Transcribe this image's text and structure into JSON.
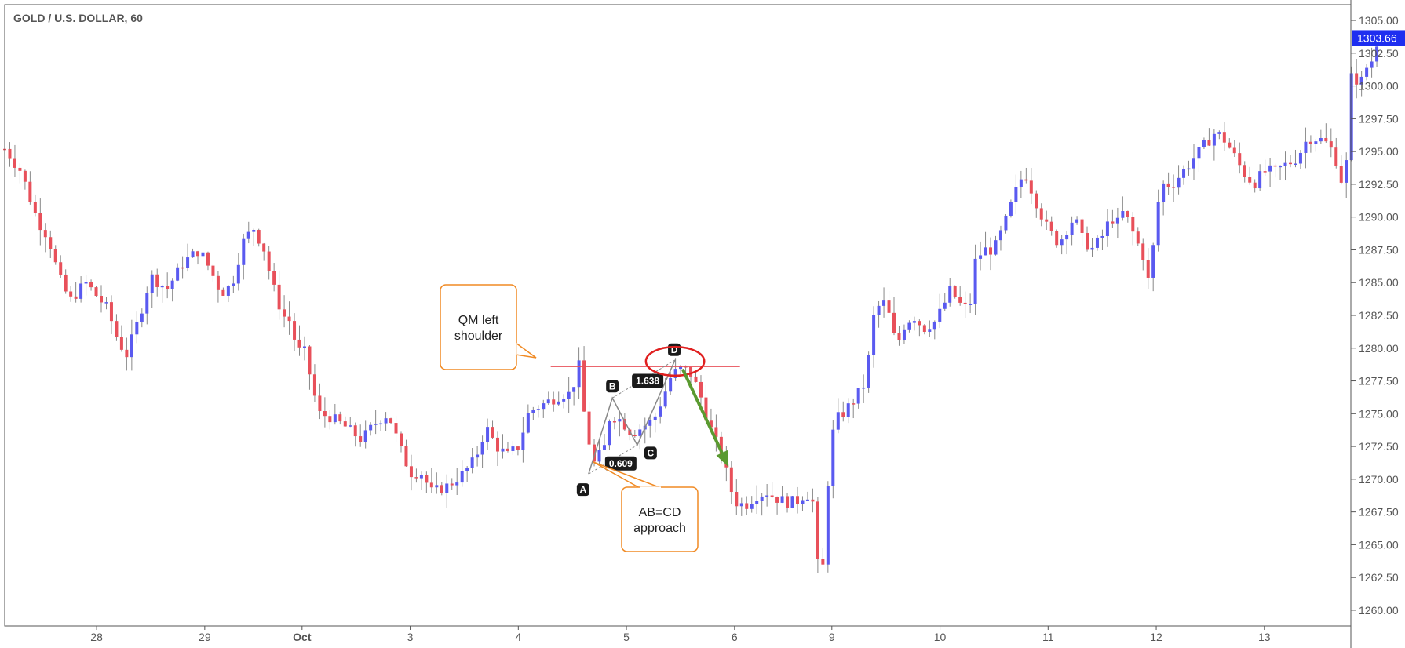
{
  "chart_data": {
    "type": "candlestick",
    "title": "GOLD / U.S. DOLLAR, 60",
    "ylim": [
      1258.8,
      1306.2
    ],
    "y_ticks": [
      1260,
      1262.5,
      1265,
      1267.5,
      1270,
      1272.5,
      1275,
      1277.5,
      1280,
      1282.5,
      1285,
      1287.5,
      1290,
      1292.5,
      1295,
      1297.5,
      1300,
      1302.5,
      1305
    ],
    "y_tick_labels": [
      "1260.00",
      "1262.50",
      "1265.00",
      "1267.50",
      "1270.00",
      "1272.50",
      "1275.00",
      "1277.50",
      "1280.00",
      "1282.50",
      "1285.00",
      "1287.50",
      "1290.00",
      "1292.50",
      "1295.00",
      "1297.50",
      "1300.00",
      "1302.50",
      "1305.00"
    ],
    "x_range": [
      -0.85,
      11.6
    ],
    "x_ticks": [
      {
        "label": "28",
        "x": 0.0,
        "bold": false
      },
      {
        "label": "29",
        "x": 1.0,
        "bold": false
      },
      {
        "label": "Oct",
        "x": 1.9,
        "bold": true
      },
      {
        "label": "3",
        "x": 2.9,
        "bold": false
      },
      {
        "label": "4",
        "x": 3.9,
        "bold": false
      },
      {
        "label": "5",
        "x": 4.9,
        "bold": false
      },
      {
        "label": "6",
        "x": 5.9,
        "bold": false
      },
      {
        "label": "9",
        "x": 6.8,
        "bold": false
      },
      {
        "label": "10",
        "x": 7.8,
        "bold": false
      },
      {
        "label": "11",
        "x": 8.8,
        "bold": false
      },
      {
        "label": "12",
        "x": 9.8,
        "bold": false
      },
      {
        "label": "13",
        "x": 10.8,
        "bold": false
      }
    ],
    "last_price": 1303.66,
    "last_price_label": "1303.66",
    "bull_color": "#5a5af0",
    "bear_color": "#e8505a",
    "wick_color": "#888888",
    "close_path": [
      [
        -0.85,
        1295.2
      ],
      [
        -0.7,
        1293.5
      ],
      [
        -0.6,
        1291.0
      ],
      [
        -0.55,
        1289.8
      ],
      [
        -0.45,
        1288.5
      ],
      [
        -0.35,
        1285.5
      ],
      [
        -0.25,
        1283.6
      ],
      [
        -0.1,
        1285.0
      ],
      [
        0.0,
        1284.0
      ],
      [
        0.1,
        1283.0
      ],
      [
        0.2,
        1280.5
      ],
      [
        0.28,
        1279.5
      ],
      [
        0.4,
        1282.5
      ],
      [
        0.5,
        1285.5
      ],
      [
        0.65,
        1284.5
      ],
      [
        0.8,
        1286.5
      ],
      [
        0.95,
        1287.5
      ],
      [
        1.05,
        1286.0
      ],
      [
        1.15,
        1284.2
      ],
      [
        1.25,
        1284.8
      ],
      [
        1.35,
        1288.0
      ],
      [
        1.45,
        1289.2
      ],
      [
        1.55,
        1287.5
      ],
      [
        1.62,
        1285.0
      ],
      [
        1.72,
        1282.5
      ],
      [
        1.8,
        1282.0
      ],
      [
        1.85,
        1279.8
      ],
      [
        1.92,
        1279.8
      ],
      [
        2.0,
        1277.0
      ],
      [
        2.05,
        1275.0
      ],
      [
        2.15,
        1274.8
      ],
      [
        2.3,
        1274.0
      ],
      [
        2.45,
        1273.0
      ],
      [
        2.6,
        1274.5
      ],
      [
        2.7,
        1275.0
      ],
      [
        2.8,
        1272.5
      ],
      [
        2.9,
        1270.5
      ],
      [
        3.0,
        1270.5
      ],
      [
        3.1,
        1269.0
      ],
      [
        3.25,
        1269.5
      ],
      [
        3.4,
        1270.5
      ],
      [
        3.5,
        1271.5
      ],
      [
        3.6,
        1274.0
      ],
      [
        3.7,
        1272.5
      ],
      [
        3.8,
        1271.8
      ],
      [
        3.9,
        1272.5
      ],
      [
        4.0,
        1275.2
      ],
      [
        4.15,
        1275.8
      ],
      [
        4.3,
        1276.5
      ],
      [
        4.4,
        1276.5
      ],
      [
        4.45,
        1279.5
      ],
      [
        4.5,
        1275.5
      ],
      [
        4.55,
        1273.0
      ],
      [
        4.6,
        1271.2
      ],
      [
        4.7,
        1272.5
      ],
      [
        4.75,
        1275.0
      ],
      [
        4.85,
        1274.5
      ],
      [
        4.95,
        1273.5
      ],
      [
        5.05,
        1274.0
      ],
      [
        5.15,
        1274.5
      ],
      [
        5.25,
        1276.5
      ],
      [
        5.32,
        1278.0
      ],
      [
        5.42,
        1278.5
      ],
      [
        5.5,
        1278.0
      ],
      [
        5.58,
        1276.5
      ],
      [
        5.65,
        1274.5
      ],
      [
        5.72,
        1273.0
      ],
      [
        5.8,
        1271.5
      ],
      [
        5.85,
        1269.5
      ],
      [
        5.92,
        1268.2
      ],
      [
        6.0,
        1268.0
      ],
      [
        6.1,
        1268.8
      ],
      [
        6.2,
        1269.0
      ],
      [
        6.3,
        1268.5
      ],
      [
        6.4,
        1268.2
      ],
      [
        6.5,
        1268.4
      ],
      [
        6.55,
        1269.0
      ],
      [
        6.62,
        1268.5
      ],
      [
        6.66,
        1265.0
      ],
      [
        6.68,
        1262.0
      ],
      [
        6.7,
        1261.0
      ],
      [
        6.74,
        1266.5
      ],
      [
        6.78,
        1272.0
      ],
      [
        6.83,
        1274.5
      ],
      [
        6.9,
        1275.0
      ],
      [
        7.0,
        1276.0
      ],
      [
        7.12,
        1277.5
      ],
      [
        7.16,
        1281.0
      ],
      [
        7.2,
        1283.0
      ],
      [
        7.3,
        1283.5
      ],
      [
        7.4,
        1280.0
      ],
      [
        7.45,
        1281.5
      ],
      [
        7.55,
        1282.5
      ],
      [
        7.65,
        1281.5
      ],
      [
        7.75,
        1282.0
      ],
      [
        7.82,
        1283.0
      ],
      [
        7.9,
        1284.5
      ],
      [
        7.97,
        1283.5
      ],
      [
        8.02,
        1283.0
      ],
      [
        8.08,
        1283.5
      ],
      [
        8.12,
        1286.5
      ],
      [
        8.2,
        1287.5
      ],
      [
        8.3,
        1287.5
      ],
      [
        8.4,
        1289.5
      ],
      [
        8.48,
        1291.5
      ],
      [
        8.58,
        1293.5
      ],
      [
        8.65,
        1292.0
      ],
      [
        8.72,
        1290.5
      ],
      [
        8.8,
        1289.0
      ],
      [
        8.9,
        1288.0
      ],
      [
        9.0,
        1289.5
      ],
      [
        9.05,
        1290.0
      ],
      [
        9.1,
        1288.5
      ],
      [
        9.2,
        1287.5
      ],
      [
        9.3,
        1288.5
      ],
      [
        9.38,
        1290.0
      ],
      [
        9.45,
        1289.5
      ],
      [
        9.5,
        1290.5
      ],
      [
        9.6,
        1288.5
      ],
      [
        9.68,
        1287.0
      ],
      [
        9.72,
        1285.0
      ],
      [
        9.76,
        1286.5
      ],
      [
        9.8,
        1290.5
      ],
      [
        9.86,
        1292.5
      ],
      [
        9.95,
        1292.5
      ],
      [
        10.05,
        1293.5
      ],
      [
        10.15,
        1294.5
      ],
      [
        10.25,
        1295.5
      ],
      [
        10.35,
        1296.5
      ],
      [
        10.42,
        1296.0
      ],
      [
        10.5,
        1295.0
      ],
      [
        10.6,
        1293.5
      ],
      [
        10.7,
        1292.5
      ],
      [
        10.8,
        1293.5
      ],
      [
        10.9,
        1293.5
      ],
      [
        11.0,
        1294.0
      ],
      [
        11.1,
        1294.5
      ],
      [
        11.2,
        1296.0
      ],
      [
        11.3,
        1296.0
      ],
      [
        11.4,
        1295.5
      ],
      [
        11.48,
        1294.0
      ],
      [
        11.52,
        1292.5
      ],
      [
        11.55,
        1292.0
      ],
      [
        11.58,
        1300.0
      ],
      [
        11.62,
        1301.0
      ],
      [
        11.68,
        1300.0
      ],
      [
        11.75,
        1301.5
      ],
      [
        11.8,
        1302.0
      ],
      [
        11.85,
        1303.66
      ]
    ],
    "annotations": {
      "qm_line": {
        "x1": 4.2,
        "x2": 5.95,
        "y": 1278.6,
        "color": "#e8505a"
      },
      "pattern": {
        "A": {
          "x": 4.55,
          "y": 1270.4,
          "label": "A"
        },
        "B": {
          "x": 4.77,
          "y": 1276.2,
          "label": "B"
        },
        "C": {
          "x": 5.0,
          "y": 1272.6,
          "label": "C"
        },
        "D": {
          "x": 5.35,
          "y": 1279.1,
          "label": "D"
        },
        "ab_ratio": "0.609",
        "cd_ratio": "1.638",
        "line_color": "#888888"
      },
      "d_ellipse": {
        "x": 5.35,
        "y": 1279.0,
        "rx_units": 0.27,
        "ry_units": 1.1,
        "color": "#e02020"
      },
      "arrow": {
        "x1": 5.42,
        "y1": 1278.4,
        "x2": 5.83,
        "y2": 1271.2,
        "color": "#5a9a30"
      },
      "callout_qm": {
        "lines": [
          "QM left",
          "shoulder"
        ],
        "color": "#f08a24"
      },
      "callout_abcd": {
        "lines": [
          "AB=CD",
          "approach"
        ],
        "color": "#f08a24"
      }
    }
  }
}
